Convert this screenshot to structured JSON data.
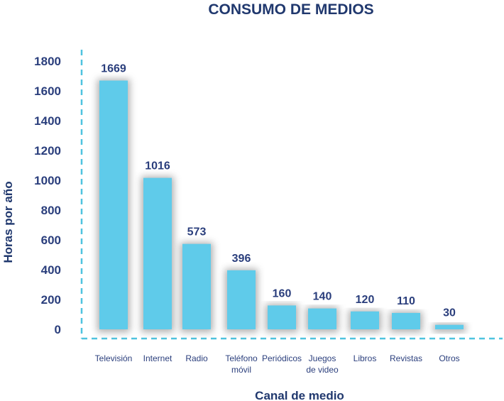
{
  "chart_data": {
    "type": "bar",
    "title": "CONSUMO DE MEDIOS",
    "xlabel": "Canal de medio",
    "ylabel": "Horas por año",
    "categories": [
      [
        "Televisión"
      ],
      [
        "Internet"
      ],
      [
        "Radio"
      ],
      [
        "Teléfono",
        "móvil"
      ],
      [
        "Periódicos"
      ],
      [
        "Juegos",
        "de video"
      ],
      [
        "Libros"
      ],
      [
        "Revistas"
      ],
      [
        "Otros"
      ]
    ],
    "values": [
      1669,
      1016,
      573,
      396,
      160,
      140,
      120,
      110,
      30
    ],
    "ylim": [
      0,
      1800
    ],
    "yticks": [
      0,
      200,
      400,
      600,
      800,
      1000,
      1200,
      1400,
      1600,
      1800
    ],
    "grid": false,
    "legend": "none",
    "colors": {
      "bar": "#5fcbea",
      "axis": "#4fc3df",
      "text": "#2a3e7c",
      "title": "#20386e"
    }
  }
}
